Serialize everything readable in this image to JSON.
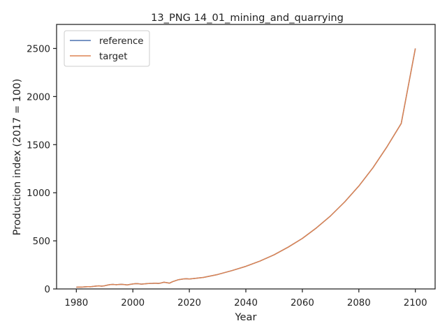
{
  "chart_data": {
    "type": "line",
    "title": "13_PNG 14_01_mining_and_quarrying",
    "xlabel": "Year",
    "ylabel": "Production index (2017 = 100)",
    "xlim": [
      1973,
      2107
    ],
    "ylim": [
      0,
      2750
    ],
    "xticks": [
      1980,
      2000,
      2020,
      2040,
      2060,
      2080,
      2100
    ],
    "yticks": [
      0,
      500,
      1000,
      1500,
      2000,
      2500
    ],
    "grid": false,
    "legend_position": "top-left",
    "series": [
      {
        "name": "reference",
        "color": "#4c72b0",
        "x": [
          1980,
          1981,
          1982,
          1983,
          1984,
          1985,
          1986,
          1987,
          1988,
          1989,
          1990,
          1991,
          1992,
          1993,
          1994,
          1995,
          1996,
          1997,
          1998,
          1999,
          2000,
          2001,
          2002,
          2003,
          2004,
          2005,
          2006,
          2007,
          2008,
          2009,
          2010,
          2011,
          2012,
          2013,
          2014,
          2015,
          2016,
          2017,
          2018,
          2019,
          2020,
          2022,
          2025,
          2030,
          2035,
          2040,
          2045,
          2050,
          2055,
          2060,
          2065,
          2070,
          2075,
          2080,
          2085,
          2090,
          2095,
          2100
        ],
        "y": [
          18,
          20,
          19,
          22,
          24,
          23,
          26,
          30,
          32,
          29,
          33,
          40,
          45,
          47,
          44,
          46,
          48,
          45,
          42,
          47,
          52,
          55,
          54,
          50,
          53,
          55,
          57,
          58,
          60,
          57,
          62,
          70,
          65,
          60,
          75,
          85,
          95,
          100,
          104,
          106,
          103,
          110,
          120,
          150,
          190,
          235,
          290,
          355,
          435,
          525,
          635,
          760,
          905,
          1070,
          1260,
          1480,
          1720,
          2500
        ]
      },
      {
        "name": "target",
        "color": "#dd8452",
        "x": [
          1980,
          1981,
          1982,
          1983,
          1984,
          1985,
          1986,
          1987,
          1988,
          1989,
          1990,
          1991,
          1992,
          1993,
          1994,
          1995,
          1996,
          1997,
          1998,
          1999,
          2000,
          2001,
          2002,
          2003,
          2004,
          2005,
          2006,
          2007,
          2008,
          2009,
          2010,
          2011,
          2012,
          2013,
          2014,
          2015,
          2016,
          2017,
          2018,
          2019,
          2020,
          2022,
          2025,
          2030,
          2035,
          2040,
          2045,
          2050,
          2055,
          2060,
          2065,
          2070,
          2075,
          2080,
          2085,
          2090,
          2095,
          2100
        ],
        "y": [
          18,
          20,
          19,
          22,
          24,
          23,
          26,
          30,
          32,
          29,
          33,
          40,
          45,
          47,
          44,
          46,
          48,
          45,
          42,
          47,
          52,
          55,
          54,
          50,
          53,
          55,
          57,
          58,
          60,
          57,
          62,
          70,
          65,
          60,
          75,
          85,
          95,
          100,
          104,
          106,
          103,
          110,
          120,
          150,
          190,
          235,
          290,
          355,
          435,
          525,
          635,
          760,
          905,
          1070,
          1260,
          1480,
          1720,
          2500
        ]
      }
    ]
  }
}
